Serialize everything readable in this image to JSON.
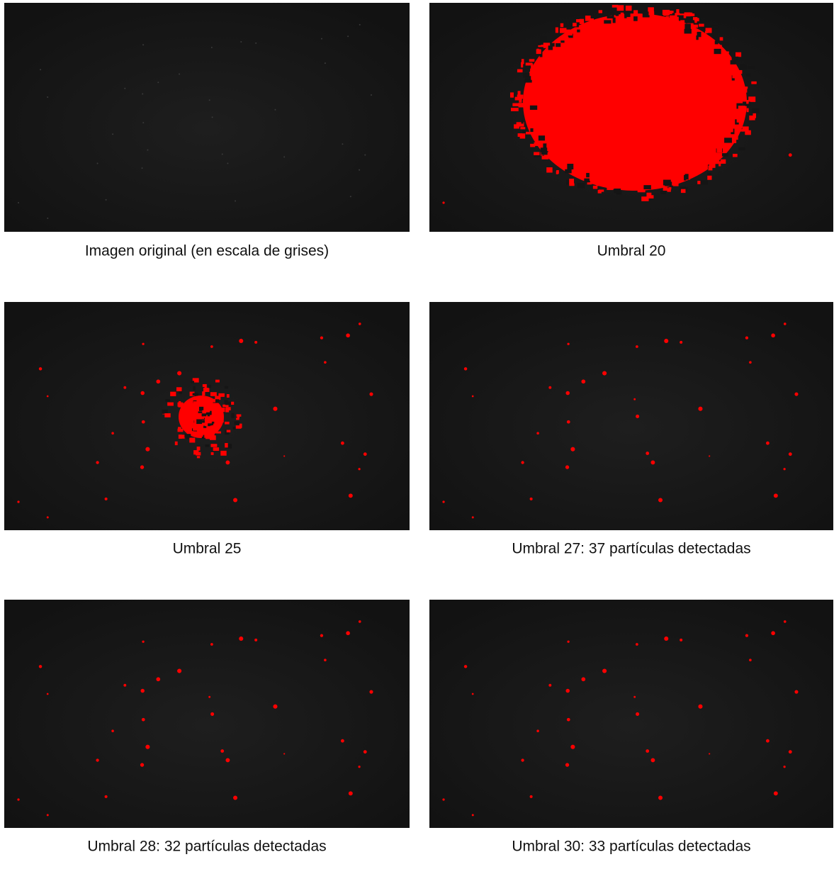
{
  "figure": {
    "panels": [
      {
        "caption": "Imagen original (en escala de grises)"
      },
      {
        "caption": "Umbral 20"
      },
      {
        "caption": "Umbral 25"
      },
      {
        "caption": "Umbral 27: 37 partículas detectadas"
      },
      {
        "caption": "Umbral 28: 32 partículas detectadas"
      },
      {
        "caption": "Umbral 30: 33 partículas detectadas"
      }
    ]
  }
}
